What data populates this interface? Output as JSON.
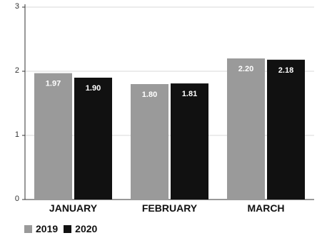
{
  "chart_data": {
    "type": "bar",
    "title": "",
    "xlabel": "",
    "ylabel": "",
    "categories": [
      "JANUARY",
      "FEBRUARY",
      "MARCH"
    ],
    "series": [
      {
        "name": "2019",
        "values": [
          1.97,
          1.8,
          2.2
        ],
        "labels": [
          "1.97",
          "1.80",
          "2.20"
        ],
        "color": "#9a9a9a"
      },
      {
        "name": "2020",
        "values": [
          1.9,
          1.81,
          2.18
        ],
        "labels": [
          "1.90",
          "1.81",
          "2.18"
        ],
        "color": "#111111"
      }
    ],
    "ylim": [
      0,
      3
    ],
    "yticks": [
      0,
      1,
      2,
      3
    ],
    "ytick_labels": [
      "0",
      "1",
      "2",
      "3"
    ],
    "grid": true,
    "legend_position": "bottom-left"
  }
}
